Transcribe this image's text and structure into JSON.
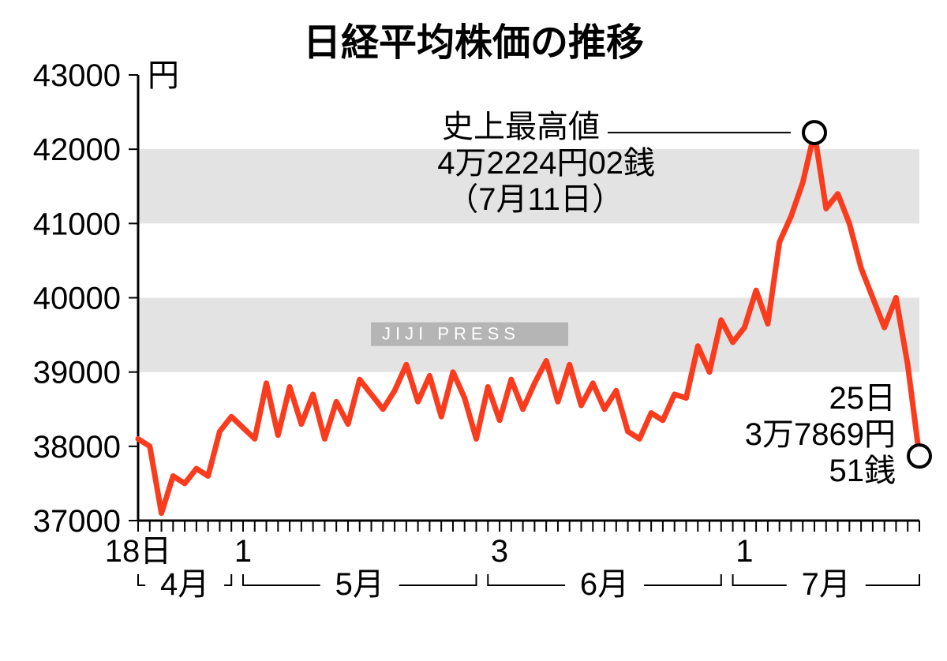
{
  "chart": {
    "type": "line",
    "title": "日経平均株価の推移",
    "title_fontsize": 48,
    "unit_label": "円",
    "background_color": "#ffffff",
    "band_color": "#e3e3e3",
    "line_color": "#fa3c1e",
    "line_width": 7,
    "axis_color": "#000000",
    "marker_fill": "#ffffff",
    "marker_stroke": "#000000",
    "marker_radius": 14,
    "marker_stroke_width": 4,
    "ylim": [
      37000,
      43000
    ],
    "yticks": [
      37000,
      38000,
      39000,
      40000,
      41000,
      42000,
      43000
    ],
    "ytick_labels": [
      "37000",
      "38000",
      "39000",
      "40000",
      "41000",
      "42000",
      "43000"
    ],
    "x_day_labels": [
      {
        "x": 0,
        "label": "18日"
      },
      {
        "x": 9,
        "label": "1"
      },
      {
        "x": 31,
        "label": "3"
      },
      {
        "x": 52,
        "label": "1"
      }
    ],
    "x_month_labels": [
      {
        "start": 0,
        "end": 8,
        "label": "4月"
      },
      {
        "start": 9,
        "end": 29,
        "label": "5月"
      },
      {
        "start": 30,
        "end": 50,
        "label": "6月"
      },
      {
        "start": 51,
        "end": 67,
        "label": "7月"
      }
    ],
    "annotations": {
      "peak": {
        "line1": "史上最高値",
        "line2": "4万2224円02銭",
        "line3": "（7月11日）",
        "point_index": 58
      },
      "end": {
        "line1": "25日",
        "line2": "3万7869円",
        "line3": "51銭",
        "point_index": 67
      }
    },
    "watermark": "JIJI PRESS",
    "watermark_bg": "#b5b5b5",
    "data": [
      38100,
      38000,
      37100,
      37600,
      37500,
      37700,
      37600,
      38200,
      38400,
      38250,
      38100,
      38850,
      38150,
      38800,
      38300,
      38700,
      38100,
      38600,
      38300,
      38900,
      38700,
      38500,
      38750,
      39100,
      38600,
      38950,
      38400,
      39000,
      38650,
      38100,
      38800,
      38350,
      38900,
      38500,
      38850,
      39150,
      38600,
      39100,
      38550,
      38850,
      38500,
      38750,
      38200,
      38100,
      38450,
      38350,
      38700,
      38650,
      39350,
      39000,
      39700,
      39400,
      39600,
      40100,
      39650,
      40750,
      41100,
      41550,
      42224,
      41200,
      41400,
      41000,
      40400,
      40000,
      39600,
      40000,
      39100,
      37869
    ]
  }
}
